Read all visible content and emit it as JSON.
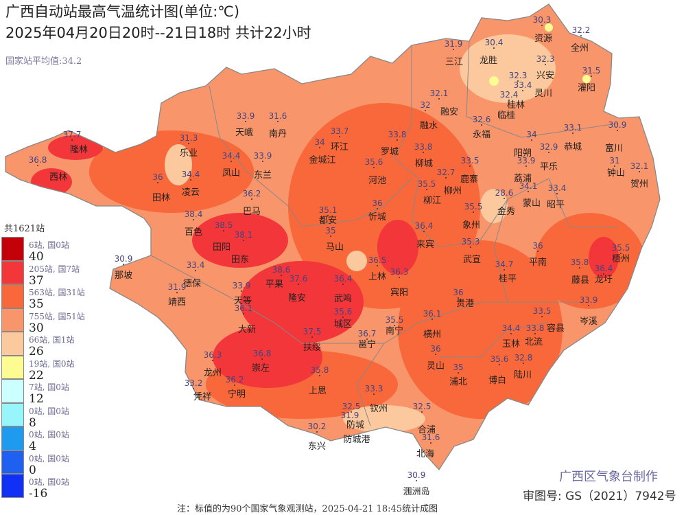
{
  "header": {
    "title": "广西自动站最高气温统计图(单位:℃)",
    "subtitle": "2025年04月20日20时--21日18时 共计22小时",
    "average": "国家站平均值:34.2"
  },
  "legend": {
    "total": "共1621站",
    "thresholds": [
      "40",
      "37",
      "35",
      "30",
      "26",
      "22",
      "12",
      "8",
      "4",
      "0",
      "-16"
    ],
    "bins": [
      {
        "count": "6站, 国0站",
        "color": "#c40008"
      },
      {
        "count": "205站, 国7站",
        "color": "#f3363a"
      },
      {
        "count": "563站, 国31站",
        "color": "#f8683a"
      },
      {
        "count": "755站, 国51站",
        "color": "#f8956a"
      },
      {
        "count": "66站, 国1站",
        "color": "#fbc99d"
      },
      {
        "count": "19站, 国0站",
        "color": "#fdfc92"
      },
      {
        "count": "7站, 国0站",
        "color": "#ccffff"
      },
      {
        "count": "0站, 国0站",
        "color": "#96f6fb"
      },
      {
        "count": "0站, 国0站",
        "color": "#1e9aef"
      },
      {
        "count": "0站, 国0站",
        "color": "#1e60f0"
      },
      {
        "count": "0站, 国0站",
        "color": "#1030f5"
      }
    ]
  },
  "stations": [
    {
      "name": "隆林",
      "value": "37.7"
    },
    {
      "name": "西林",
      "value": "36.8"
    },
    {
      "name": "乐业",
      "value": "31.3"
    },
    {
      "name": "田林",
      "value": "36"
    },
    {
      "name": "凌云",
      "value": "34.4"
    },
    {
      "name": "天峨",
      "value": "33.9"
    },
    {
      "name": "南丹",
      "value": "31.6"
    },
    {
      "name": "凤山",
      "value": "34.4"
    },
    {
      "name": "东兰",
      "value": "33.9"
    },
    {
      "name": "巴马",
      "value": "36.2"
    },
    {
      "name": "百色",
      "value": "38.4"
    },
    {
      "name": "田阳",
      "value": "38.5"
    },
    {
      "name": "田东",
      "value": "38.1"
    },
    {
      "name": "那坡",
      "value": "30.9"
    },
    {
      "name": "德保",
      "value": "33.4"
    },
    {
      "name": "靖西",
      "value": "31.9"
    },
    {
      "name": "天等",
      "value": "33.9"
    },
    {
      "name": "平果",
      "value": "38.6"
    },
    {
      "name": "隆安",
      "value": "37.6"
    },
    {
      "name": "大新",
      "value": "36.1"
    },
    {
      "name": "武鸣",
      "value": "36.4"
    },
    {
      "name": "马山",
      "value": "35"
    },
    {
      "name": "都安",
      "value": "35.1"
    },
    {
      "name": "忻城",
      "value": "36"
    },
    {
      "name": "上林",
      "value": "36.5"
    },
    {
      "name": "宾阳",
      "value": "36.3"
    },
    {
      "name": "城区",
      "value": "35.6"
    },
    {
      "name": "邕宁",
      "value": "36.7"
    },
    {
      "name": "南宁",
      "value": "35.5"
    },
    {
      "name": "扶绥",
      "value": "37.5"
    },
    {
      "name": "崇左",
      "value": "36.8"
    },
    {
      "name": "龙州",
      "value": "36.3"
    },
    {
      "name": "凭祥",
      "value": "33.2"
    },
    {
      "name": "宁明",
      "value": "36.2"
    },
    {
      "name": "上思",
      "value": "35.8"
    },
    {
      "name": "东兴",
      "value": "30.2"
    },
    {
      "name": "防城",
      "value": "31.9"
    },
    {
      "name": "防城港",
      "value": "32.5"
    },
    {
      "name": "钦州",
      "value": "33.3"
    },
    {
      "name": "合浦",
      "value": "32.5"
    },
    {
      "name": "北海",
      "value": "31.6"
    },
    {
      "name": "涠洲岛",
      "value": "30.9"
    },
    {
      "name": "灵山",
      "value": "36"
    },
    {
      "name": "横州",
      "value": "36.1"
    },
    {
      "name": "浦北",
      "value": "35"
    },
    {
      "name": "博白",
      "value": "35.6"
    },
    {
      "name": "陆川",
      "value": "32.8"
    },
    {
      "name": "玉林",
      "value": "34.4"
    },
    {
      "name": "北流",
      "value": "33.8"
    },
    {
      "name": "容县",
      "value": "33.5"
    },
    {
      "name": "岑溪",
      "value": "33.9"
    },
    {
      "name": "藤县",
      "value": "35.8"
    },
    {
      "name": "龙圩",
      "value": "36.4"
    },
    {
      "name": "梧州",
      "value": "35.5"
    },
    {
      "name": "平南",
      "value": "36"
    },
    {
      "name": "桂平",
      "value": "34.7"
    },
    {
      "name": "贵港",
      "value": "36"
    },
    {
      "name": "武宣",
      "value": "35.3"
    },
    {
      "name": "象州",
      "value": "35.5"
    },
    {
      "name": "来宾",
      "value": "36.4"
    },
    {
      "name": "柳江",
      "value": "35.5"
    },
    {
      "name": "柳州",
      "value": "32.7"
    },
    {
      "name": "柳城",
      "value": "33.8"
    },
    {
      "name": "鹿寨",
      "value": "33.5"
    },
    {
      "name": "罗城",
      "value": "33.8"
    },
    {
      "name": "河池",
      "value": "35.6"
    },
    {
      "name": "环江",
      "value": "33.7"
    },
    {
      "name": "金城江",
      "value": "34"
    },
    {
      "name": "融水",
      "value": "32"
    },
    {
      "name": "融安",
      "value": "32.1"
    },
    {
      "name": "三江",
      "value": "31.9"
    },
    {
      "name": "龙胜",
      "value": "30.4"
    },
    {
      "name": "资源",
      "value": "30.3"
    },
    {
      "name": "全州",
      "value": "32.2"
    },
    {
      "name": "兴安",
      "value": "32.3"
    },
    {
      "name": "灌阳",
      "value": "31.5"
    },
    {
      "name": "灵川",
      "value": "32.3"
    },
    {
      "name": "桂林",
      "value": "33.4"
    },
    {
      "name": "临桂",
      "value": "32.4"
    },
    {
      "name": "永福",
      "value": "32.6"
    },
    {
      "name": "阳朔",
      "value": "34"
    },
    {
      "name": "恭城",
      "value": "33.1"
    },
    {
      "name": "平乐",
      "value": "32.9"
    },
    {
      "name": "荔浦",
      "value": "33.9"
    },
    {
      "name": "蒙山",
      "value": "34.1"
    },
    {
      "name": "昭平",
      "value": "33.4"
    },
    {
      "name": "金秀",
      "value": "28.6"
    },
    {
      "name": "富川",
      "value": "30.9"
    },
    {
      "name": "钟山",
      "value": "31"
    },
    {
      "name": "贺州",
      "value": "32.1"
    }
  ],
  "footer": {
    "maker": "广西区气象台制作",
    "review": "审图号: GS（2021）7942号",
    "note": "注：标值的为90个国家气象观测站，2025-04-21 18:45统计成图"
  }
}
